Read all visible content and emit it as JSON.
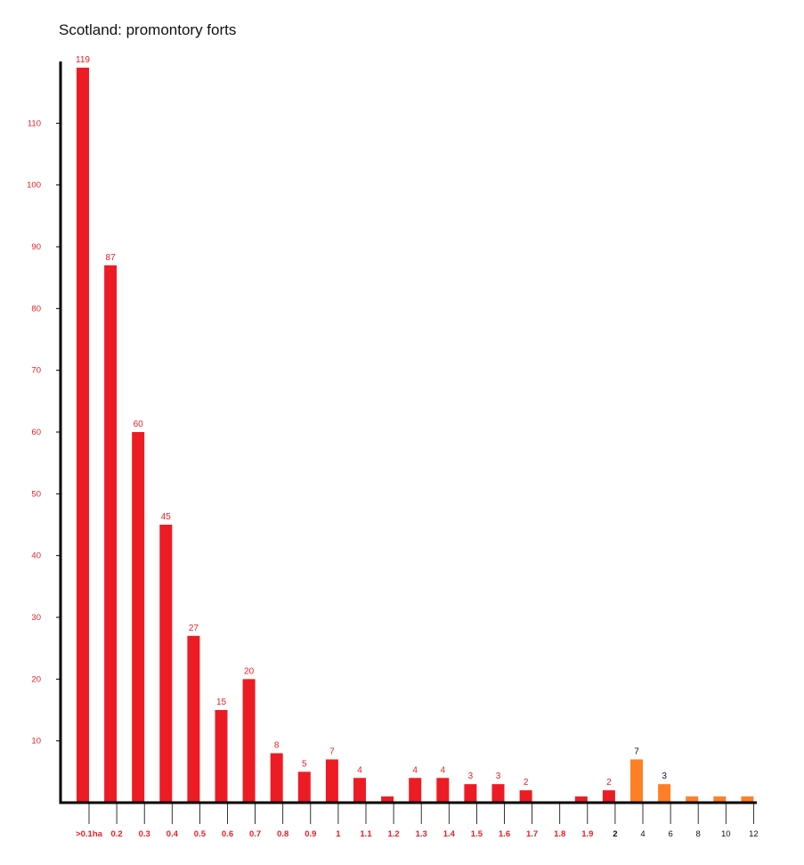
{
  "colors": {
    "primary_bar": "#ed1c24",
    "secondary_bar": "#ff7f27",
    "primary_text": "#ed1c24",
    "secondary_text": "#111111",
    "axis": "#000000"
  },
  "chart_data": {
    "type": "bar",
    "title": "Scotland: promontory forts",
    "xlabel": "",
    "ylabel": "",
    "ylim": [
      0,
      120
    ],
    "yticks": [
      10,
      20,
      30,
      40,
      50,
      60,
      70,
      80,
      90,
      100,
      110
    ],
    "grid": false,
    "legend": "none",
    "categories": [
      ">0.1ha",
      "0.2",
      "0.3",
      "0.4",
      "0.5",
      "0.6",
      "0.7",
      "0.8",
      "0.9",
      "1",
      "1.1",
      "1.2",
      "1.3",
      "1.4",
      "1.5",
      "1.6",
      "1.7",
      "1.8",
      "1.9",
      "2",
      "4",
      "6",
      "8",
      "10",
      "12"
    ],
    "values": [
      119,
      87,
      60,
      45,
      27,
      15,
      20,
      8,
      5,
      7,
      4,
      1,
      4,
      4,
      3,
      3,
      2,
      0,
      1,
      2,
      7,
      3,
      1,
      1,
      1
    ],
    "data_labels": [
      "119",
      "87",
      "60",
      "45",
      "27",
      "15",
      "20",
      "8",
      "5",
      "7",
      "4",
      "",
      "4",
      "4",
      "3",
      "3",
      "2",
      "",
      "",
      "2",
      "7",
      "3",
      "",
      "",
      ""
    ],
    "bar_groups": [
      "primary",
      "primary",
      "primary",
      "primary",
      "primary",
      "primary",
      "primary",
      "primary",
      "primary",
      "primary",
      "primary",
      "primary",
      "primary",
      "primary",
      "primary",
      "primary",
      "primary",
      "primary",
      "primary",
      "primary",
      "secondary",
      "secondary",
      "secondary",
      "secondary",
      "secondary"
    ],
    "label_groups": [
      "primary",
      "primary",
      "primary",
      "primary",
      "primary",
      "primary",
      "primary",
      "primary",
      "primary",
      "primary",
      "primary",
      "primary",
      "primary",
      "primary",
      "primary",
      "primary",
      "primary",
      "primary",
      "primary",
      "primary",
      "secondary",
      "secondary",
      "",
      "",
      ""
    ],
    "tick_label_groups": [
      "primary",
      "primary",
      "primary",
      "primary",
      "primary",
      "primary",
      "primary",
      "primary",
      "primary",
      "primary",
      "primary",
      "primary",
      "primary",
      "primary",
      "primary",
      "primary",
      "primary",
      "primary",
      "primary",
      "secondary-bold",
      "secondary",
      "secondary",
      "secondary",
      "secondary",
      "secondary"
    ]
  }
}
